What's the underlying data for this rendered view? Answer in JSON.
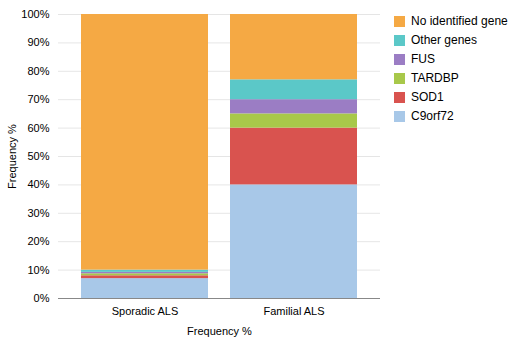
{
  "chart_data": {
    "type": "bar",
    "stacked": true,
    "categories": [
      "Sporadic ALS",
      "Familial ALS"
    ],
    "series": [
      {
        "name": "C9orf72",
        "color": "#A8C8E8",
        "values": [
          7,
          40
        ]
      },
      {
        "name": "SOD1",
        "color": "#D9534F",
        "values": [
          1,
          20
        ]
      },
      {
        "name": "TARDBP",
        "color": "#A8C84A",
        "values": [
          0.7,
          5
        ]
      },
      {
        "name": "FUS",
        "color": "#9B7DC4",
        "values": [
          0.5,
          5
        ]
      },
      {
        "name": "Other genes",
        "color": "#5BC8C8",
        "values": [
          0.8,
          7
        ]
      },
      {
        "name": "No identified gene",
        "color": "#F5A944",
        "values": [
          90,
          23
        ]
      }
    ],
    "xlabel": "Frequency %",
    "ylabel": "Frequency %",
    "ylim": [
      0,
      100
    ],
    "yticks": [
      {
        "value": 0,
        "label": "0%"
      },
      {
        "value": 10,
        "label": "10%"
      },
      {
        "value": 20,
        "label": "20%"
      },
      {
        "value": 30,
        "label": "30%"
      },
      {
        "value": 40,
        "label": "40%"
      },
      {
        "value": 50,
        "label": "50%"
      },
      {
        "value": 60,
        "label": "60%"
      },
      {
        "value": 70,
        "label": "70%"
      },
      {
        "value": 80,
        "label": "80%"
      },
      {
        "value": 90,
        "label": "90%"
      },
      {
        "value": 100,
        "label": "100%"
      }
    ],
    "grid": true,
    "legend": "right"
  }
}
